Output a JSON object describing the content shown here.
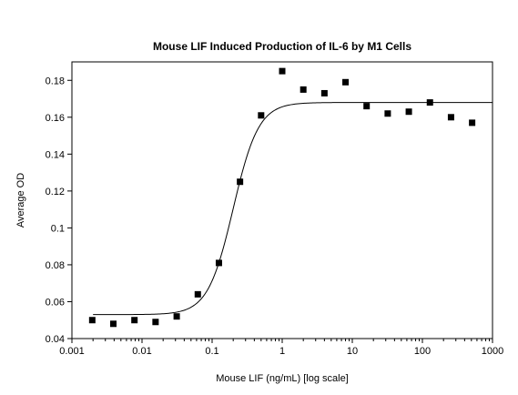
{
  "chart_data": {
    "type": "scatter",
    "title": "Mouse LIF Induced Production of IL-6 by M1 Cells",
    "xlabel": "Mouse LIF (ng/mL) [log scale]",
    "ylabel": "Average OD",
    "x_scale": "log",
    "xlim": [
      0.001,
      1000
    ],
    "ylim": [
      0.04,
      0.19
    ],
    "x_ticks": [
      "0.001",
      "0.01",
      "0.1",
      "1",
      "10",
      "100",
      "1000"
    ],
    "y_ticks": [
      "0.04",
      "0.06",
      "0.08",
      "0.1",
      "0.12",
      "0.14",
      "0.16",
      "0.18"
    ],
    "grid": false,
    "series": [
      {
        "marker": "square",
        "x": [
          0.00195,
          0.0039,
          0.0078,
          0.0156,
          0.03125,
          0.0625,
          0.125,
          0.25,
          0.5,
          1,
          2,
          4,
          8,
          16,
          32,
          64,
          128,
          256,
          512
        ],
        "y": [
          0.05,
          0.048,
          0.05,
          0.049,
          0.052,
          0.064,
          0.081,
          0.125,
          0.161,
          0.185,
          0.175,
          0.173,
          0.179,
          0.166,
          0.162,
          0.163,
          0.168,
          0.16,
          0.157
        ]
      }
    ],
    "fit_curve": {
      "model": "4PL",
      "bottom": 0.053,
      "top": 0.168,
      "ec50": 0.2,
      "hill": 2.4
    },
    "colors": {
      "points": "#000000",
      "curve": "#000000",
      "axes": "#000000"
    }
  }
}
